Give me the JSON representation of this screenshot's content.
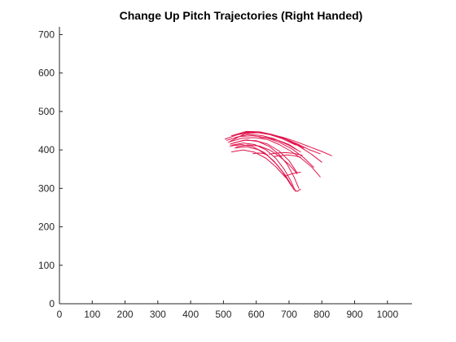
{
  "chart_data": {
    "type": "line",
    "title": "Change Up Pitch Trajectories (Right Handed)",
    "xlabel": "",
    "ylabel": "",
    "xlim": [
      0,
      1075
    ],
    "ylim": [
      0,
      720
    ],
    "xticks": [
      0,
      100,
      200,
      300,
      400,
      500,
      600,
      700,
      800,
      900,
      1000
    ],
    "yticks": [
      0,
      100,
      200,
      300,
      400,
      500,
      600,
      700
    ],
    "grid": false,
    "line_color": "#e0144c",
    "series": [
      {
        "x": [
          505,
          560,
          600,
          640,
          680,
          720,
          760,
          800,
          830
        ],
        "y": [
          428,
          445,
          446,
          441,
          433,
          422,
          409,
          396,
          385
        ]
      },
      {
        "x": [
          520,
          565,
          605,
          645,
          685,
          725,
          760,
          795
        ],
        "y": [
          422,
          442,
          445,
          440,
          430,
          416,
          401,
          390
        ]
      },
      {
        "x": [
          525,
          570,
          610,
          650,
          690,
          730,
          770,
          800
        ],
        "y": [
          437,
          448,
          447,
          440,
          428,
          410,
          388,
          368
        ]
      },
      {
        "x": [
          510,
          550,
          590,
          630,
          670,
          710,
          745,
          775
        ],
        "y": [
          425,
          435,
          437,
          432,
          420,
          402,
          380,
          355
        ]
      },
      {
        "x": [
          515,
          555,
          595,
          635,
          670,
          705,
          740,
          770,
          795
        ],
        "y": [
          420,
          430,
          432,
          427,
          414,
          397,
          376,
          355,
          330
        ]
      },
      {
        "x": [
          520,
          560,
          600,
          635,
          670,
          700,
          725
        ],
        "y": [
          415,
          425,
          424,
          415,
          397,
          372,
          340
        ]
      },
      {
        "x": [
          530,
          570,
          605,
          640,
          670,
          695,
          715,
          730
        ],
        "y": [
          418,
          426,
          422,
          409,
          388,
          362,
          330,
          300
        ]
      },
      {
        "x": [
          525,
          560,
          595,
          630,
          660,
          685,
          705,
          720
        ],
        "y": [
          412,
          418,
          414,
          400,
          378,
          350,
          320,
          292
        ]
      },
      {
        "x": [
          520,
          555,
          590,
          625,
          655,
          680,
          700,
          715
        ],
        "y": [
          410,
          414,
          408,
          393,
          370,
          343,
          316,
          297
        ]
      },
      {
        "x": [
          535,
          570,
          605,
          635,
          665,
          690,
          710
        ],
        "y": [
          405,
          408,
          401,
          385,
          360,
          333,
          305
        ]
      },
      {
        "x": [
          525,
          560,
          595,
          630,
          660,
          690
        ],
        "y": [
          395,
          400,
          394,
          378,
          356,
          328
        ]
      },
      {
        "x": [
          540,
          575,
          610,
          640,
          670,
          700,
          725
        ],
        "y": [
          408,
          413,
          410,
          400,
          384,
          362,
          338
        ]
      },
      {
        "x": [
          535,
          575,
          615,
          655,
          695,
          735
        ],
        "y": [
          432,
          440,
          438,
          429,
          414,
          395
        ]
      },
      {
        "x": [
          545,
          585,
          625,
          665,
          705,
          745
        ],
        "y": [
          440,
          446,
          444,
          436,
          423,
          405
        ]
      },
      {
        "x": [
          560,
          600,
          640,
          680,
          720
        ],
        "y": [
          446,
          446,
          440,
          429,
          413
        ]
      },
      {
        "x": [
          610,
          640,
          670,
          700,
          725
        ],
        "y": [
          433,
          430,
          424,
          414,
          400
        ]
      },
      {
        "x": [
          640,
          665,
          690,
          715,
          740
        ],
        "y": [
          389,
          392,
          393,
          391,
          386
        ]
      },
      {
        "x": [
          655,
          675,
          695,
          715,
          735
        ],
        "y": [
          383,
          385,
          387,
          385,
          381
        ]
      },
      {
        "x": [
          590,
          605,
          620,
          635
        ],
        "y": [
          390,
          392,
          391,
          387
        ]
      },
      {
        "x": [
          690,
          705,
          720,
          735
        ],
        "y": [
          332,
          337,
          340,
          342
        ]
      },
      {
        "x": [
          715,
          725,
          735
        ],
        "y": [
          297,
          292,
          298
        ]
      }
    ]
  }
}
